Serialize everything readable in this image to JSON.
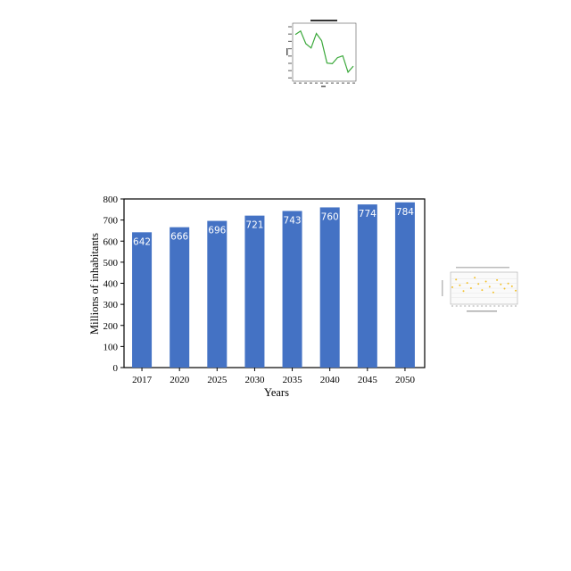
{
  "chart_data": [
    {
      "type": "bar",
      "categories": [
        "2017",
        "2020",
        "2025",
        "2030",
        "2035",
        "2040",
        "2045",
        "2050"
      ],
      "values": [
        642,
        666,
        696,
        721,
        743,
        760,
        774,
        784
      ],
      "value_labels": [
        "642",
        "666",
        "696",
        "721",
        "743",
        "760",
        "774",
        "784"
      ],
      "xlabel": "Years",
      "ylabel": "Millions of inhabitants",
      "ylim": [
        0,
        800
      ],
      "yticks": [
        "0",
        "100",
        "200",
        "300",
        "400",
        "500",
        "600",
        "700",
        "800"
      ],
      "grid": false,
      "bar_color": "#4472c4",
      "label_color": "#ffffff"
    },
    {
      "type": "line",
      "title": "",
      "values": [
        7.4,
        8.0,
        5.9,
        5.2,
        7.6,
        6.4,
        2.7,
        2.6,
        3.6,
        3.9,
        1.2,
        2.2
      ],
      "ylim": [
        0,
        9
      ],
      "line_color": "#3aa83a"
    },
    {
      "type": "scatter",
      "title": "",
      "values": [
        3.2,
        4.8,
        3.6,
        2.4,
        4.1,
        3.0,
        5.2,
        3.9,
        2.6,
        4.4,
        3.3,
        2.1,
        4.7,
        3.8,
        2.9,
        4.0,
        3.4,
        2.5
      ],
      "ylim": [
        0,
        6
      ],
      "point_color": "#f2c12e"
    }
  ]
}
